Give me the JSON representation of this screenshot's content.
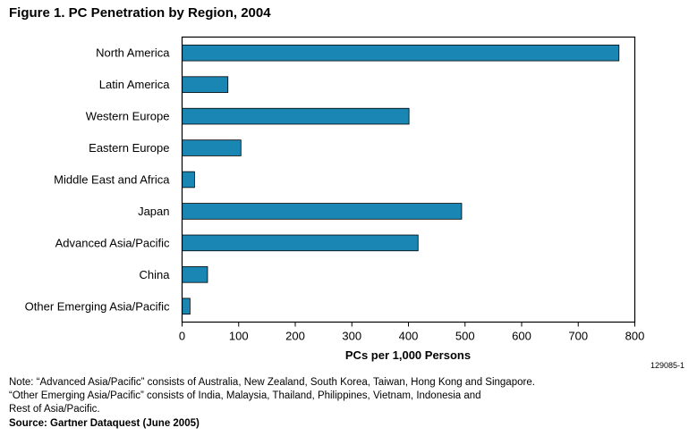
{
  "title": "Figure 1. PC Penetration by Region, 2004",
  "chart_data": {
    "type": "bar",
    "orientation": "horizontal",
    "title": "Figure 1. PC Penetration by Region, 2004",
    "xlabel": "PCs per 1,000 Persons",
    "ylabel": "",
    "categories": [
      "North America",
      "Latin America",
      "Western Europe",
      "Eastern Europe",
      "Middle East and Africa",
      "Japan",
      "Advanced Asia/Pacific",
      "China",
      "Other Emerging Asia/Pacific"
    ],
    "values": [
      772,
      81,
      401,
      104,
      22,
      494,
      417,
      45,
      14
    ],
    "xlim": [
      0,
      800
    ],
    "xticks": [
      "0",
      "100",
      "200",
      "300",
      "400",
      "500",
      "600",
      "700",
      "800"
    ],
    "grid": false,
    "legend": "none",
    "bar_color": "#1a86b3"
  },
  "figure_id": "129085-1",
  "notes": [
    "Note: “Advanced Asia/Pacific” consists of Australia, New Zealand, South Korea, Taiwan, Hong Kong and Singapore.",
    "“Other Emerging Asia/Pacific” consists of India, Malaysia, Thailand, Philippines, Vietnam, Indonesia and",
    "Rest of Asia/Pacific."
  ],
  "source": "Source: Gartner Dataquest (June 2005)"
}
